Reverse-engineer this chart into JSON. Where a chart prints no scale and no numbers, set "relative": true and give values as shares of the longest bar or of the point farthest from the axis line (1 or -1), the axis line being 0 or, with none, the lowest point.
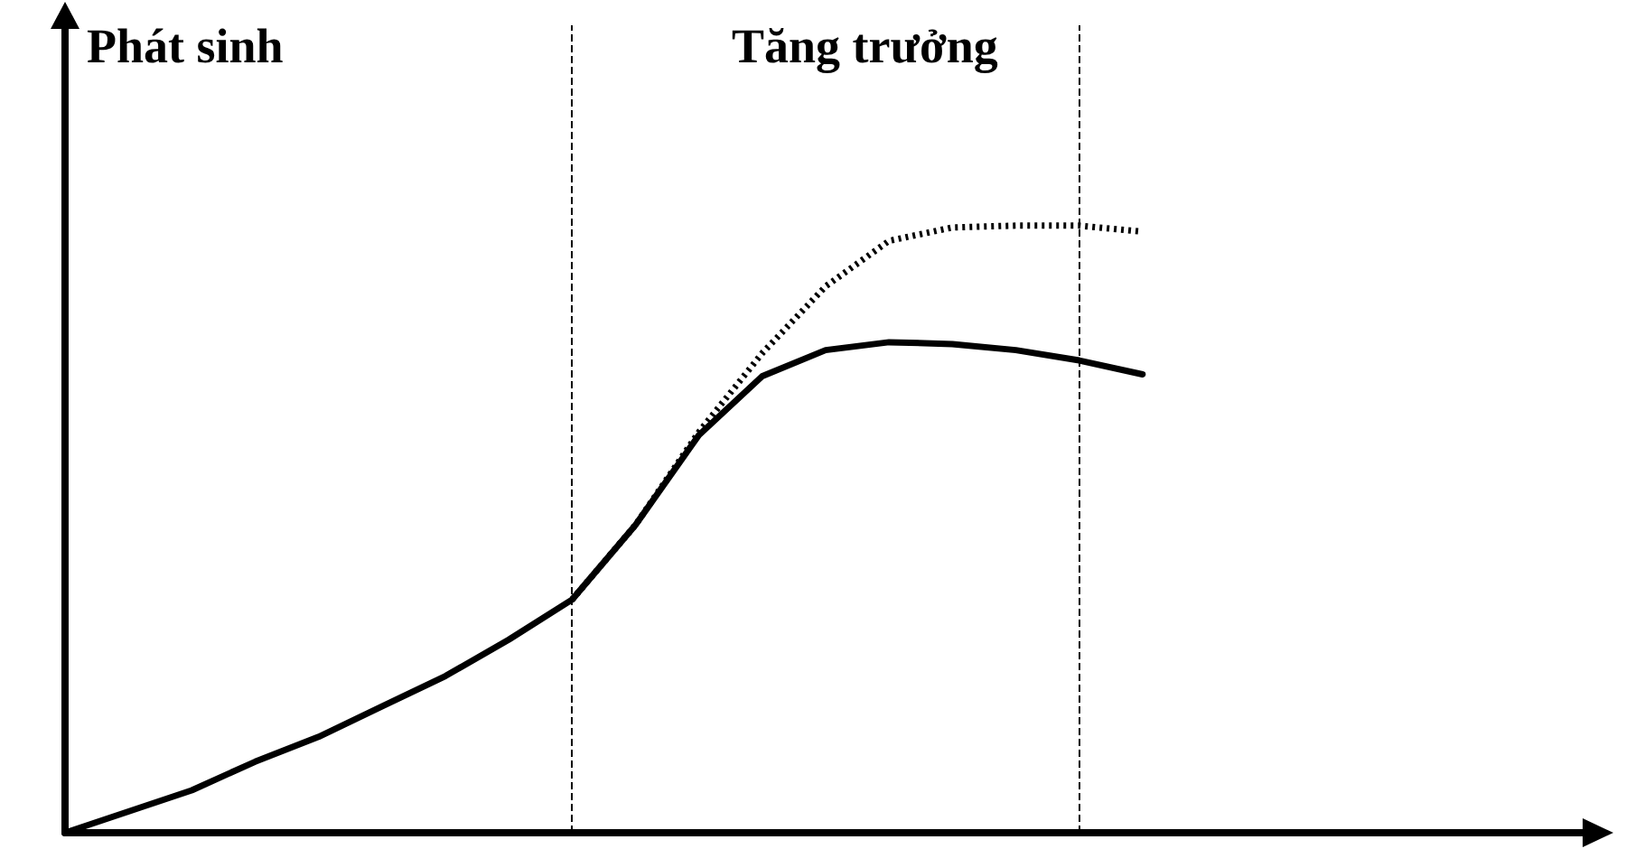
{
  "chart_data": {
    "type": "line",
    "relative": true,
    "grid": false,
    "marker": "none",
    "categories": [
      null,
      null,
      null,
      null,
      null,
      null,
      null,
      null,
      null,
      null,
      null,
      null,
      null,
      null,
      null,
      null,
      null,
      null,
      null,
      null,
      null,
      null,
      null,
      null,
      null
    ],
    "annotations": [
      "Phát sinh",
      "Tăng trưởng"
    ],
    "series": [
      {
        "color": "#000000",
        "line_style": "solid",
        "values": [
          0,
          0.035,
          0.07,
          0.117,
          0.158,
          0.208,
          0.258,
          0.318,
          0.384,
          0.507,
          0.655,
          0.752,
          0.795,
          0.808,
          0.805,
          0.795,
          0.778,
          0.755,
          null,
          null,
          null,
          null,
          null,
          null,
          null
        ]
      },
      {
        "color": "#000000",
        "line_style": "dotted",
        "values": [
          null,
          null,
          null,
          null,
          null,
          null,
          null,
          null,
          0.384,
          0.507,
          0.66,
          0.79,
          0.9,
          0.975,
          0.997,
          1.0,
          1.0,
          0.99,
          null,
          null,
          null,
          null,
          null,
          null,
          null
        ]
      }
    ]
  }
}
